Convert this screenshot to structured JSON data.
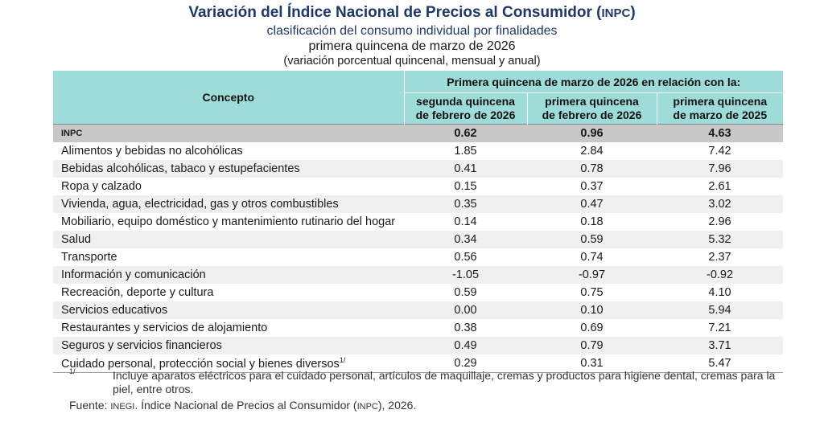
{
  "title_main": "Variación del Índice Nacional de Precios al Consumidor (",
  "title_abbr": "INPC",
  "title_close": ")",
  "subtitle1": "clasificación del consumo individual por finalidades",
  "subtitle2": "primera quincena de marzo de 2026",
  "subtitle3": "(variación porcentual quincenal, mensual y anual)",
  "header": {
    "concept": "Concepto",
    "span": "Primera quincena de marzo de 2026 en relación con la:",
    "col1_l1": "segunda quincena",
    "col1_l2": "de febrero de 2026",
    "col2_l1": "primera quincena",
    "col2_l2": "de febrero de 2026",
    "col3_l1": "primera quincena",
    "col3_l2": "de marzo de 2025"
  },
  "rows": [
    {
      "label": "INPC",
      "v1": "0.62",
      "v2": "0.96",
      "v3": "4.63"
    },
    {
      "label": "Alimentos y bebidas no alcohólicas",
      "v1": "1.85",
      "v2": "2.84",
      "v3": "7.42"
    },
    {
      "label": "Bebidas alcohólicas, tabaco y estupefacientes",
      "v1": "0.41",
      "v2": "0.78",
      "v3": "7.96"
    },
    {
      "label": "Ropa y calzado",
      "v1": "0.15",
      "v2": "0.37",
      "v3": "2.61"
    },
    {
      "label": "Vivienda, agua, electricidad, gas y otros combustibles",
      "v1": "0.35",
      "v2": "0.47",
      "v3": "3.02"
    },
    {
      "label": "Mobiliario, equipo doméstico y mantenimiento rutinario del hogar",
      "v1": "0.14",
      "v2": "0.18",
      "v3": "2.96"
    },
    {
      "label": "Salud",
      "v1": "0.34",
      "v2": "0.59",
      "v3": "5.32"
    },
    {
      "label": "Transporte",
      "v1": "0.56",
      "v2": "0.74",
      "v3": "2.37"
    },
    {
      "label": "Información y comunicación",
      "v1": "-1.05",
      "v2": "-0.97",
      "v3": "-0.92"
    },
    {
      "label": "Recreación, deporte y cultura",
      "v1": "0.59",
      "v2": "0.75",
      "v3": "4.10"
    },
    {
      "label": "Servicios educativos",
      "v1": "0.00",
      "v2": "0.10",
      "v3": "5.94"
    },
    {
      "label": "Restaurantes y servicios de alojamiento",
      "v1": "0.38",
      "v2": "0.69",
      "v3": "7.21"
    },
    {
      "label": "Seguros y servicios financieros",
      "v1": "0.49",
      "v2": "0.79",
      "v3": "3.71"
    },
    {
      "label": "Cuidado personal, protección social y bienes diversos",
      "v1": "0.29",
      "v2": "0.31",
      "v3": "5.47"
    }
  ],
  "footnote_mark": "1/",
  "footnote": "Incluye aparatos eléctricos para el cuidado personal, artículos de maquillaje, cremas y productos para higiene dental, cremas para la piel, entre otros.",
  "source_label": "Fuente: ",
  "source_org": "INEGI",
  "source_text1": ". Índice Nacional de Precios al Consumidor (",
  "source_abbr": "INPC",
  "source_text2": "), 2026."
}
